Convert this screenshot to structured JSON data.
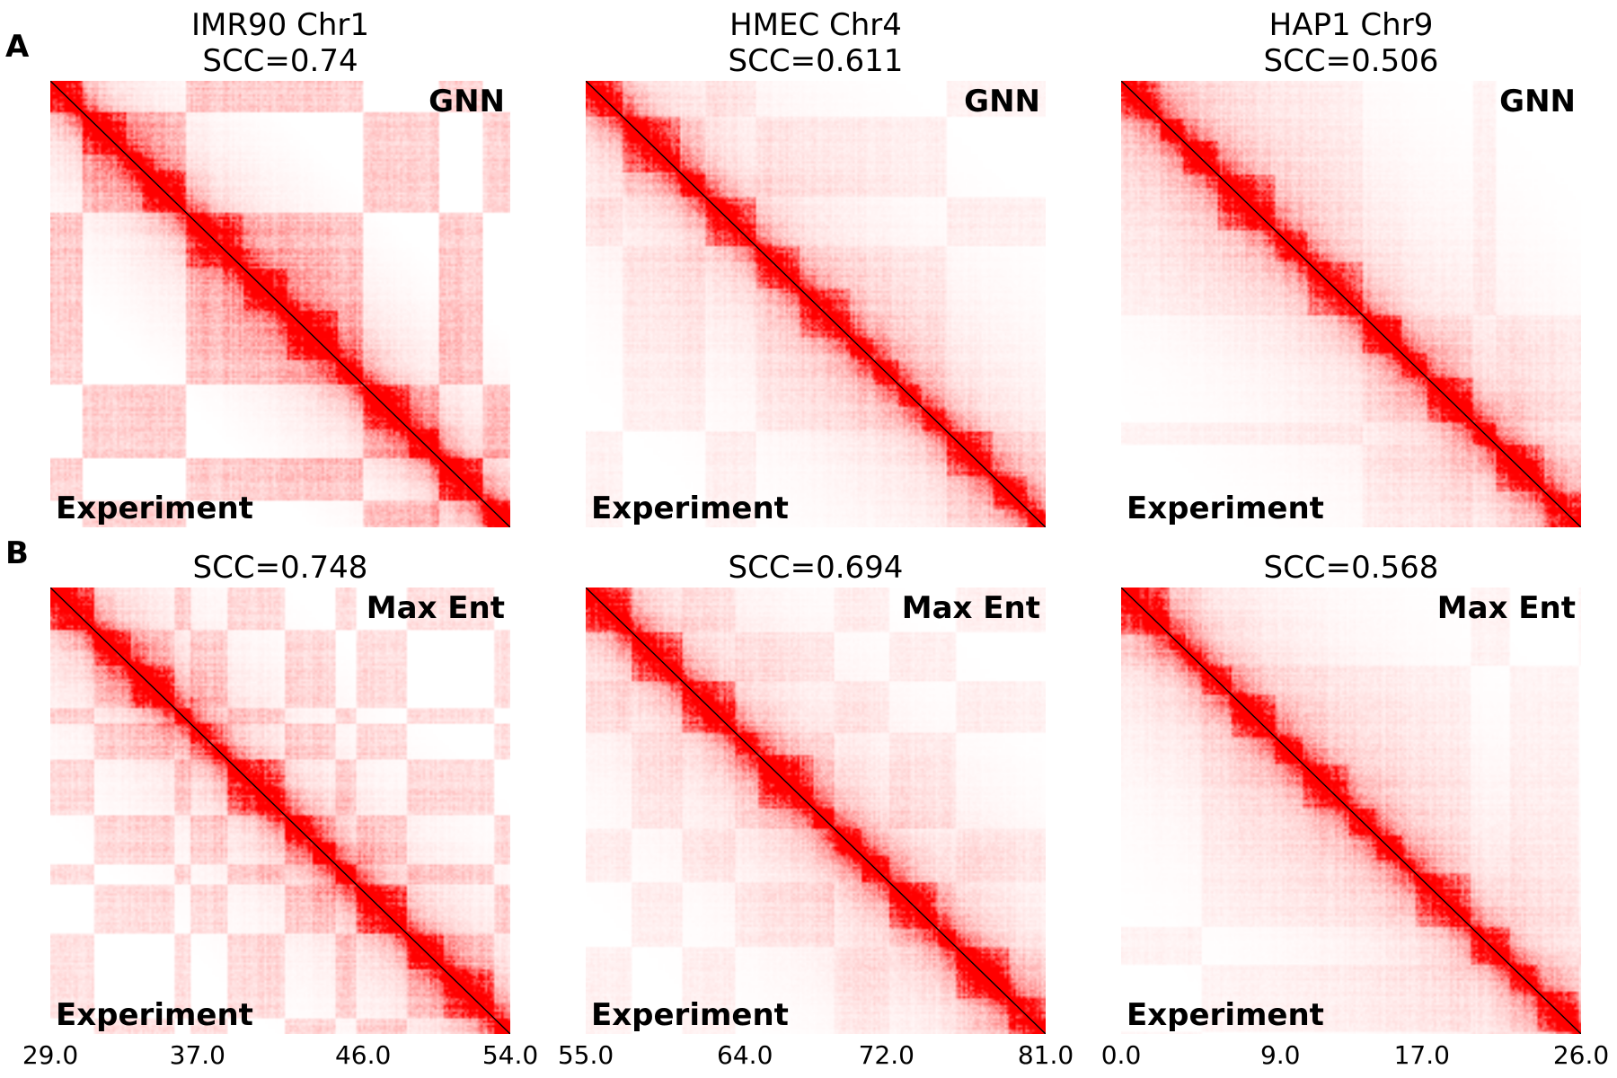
{
  "panel_labels": [
    "A",
    "B"
  ],
  "chart_data": [
    {
      "type": "heatmap",
      "row": "A",
      "title_line1": "IMR90 Chr1",
      "title_line2": "SCC=0.74",
      "upper_label": "GNN",
      "lower_label": "Experiment",
      "scc": 0.74,
      "xticks": [
        "29.0",
        "37.0",
        "46.0",
        "54.0"
      ],
      "xlim": [
        29,
        54
      ]
    },
    {
      "type": "heatmap",
      "row": "A",
      "title_line1": "HMEC Chr4",
      "title_line2": "SCC=0.611",
      "upper_label": "GNN",
      "lower_label": "Experiment",
      "scc": 0.611,
      "xticks": [
        "55.0",
        "64.0",
        "72.0",
        "81.0"
      ],
      "xlim": [
        55,
        81
      ]
    },
    {
      "type": "heatmap",
      "row": "A",
      "title_line1": "HAP1 Chr9",
      "title_line2": "SCC=0.506",
      "upper_label": "GNN",
      "lower_label": "Experiment",
      "scc": 0.506,
      "xticks": [
        "0.0",
        "9.0",
        "17.0",
        "26.0"
      ],
      "xlim": [
        0,
        26
      ]
    },
    {
      "type": "heatmap",
      "row": "B",
      "title_line1": "",
      "title_line2": "SCC=0.748",
      "upper_label": "Max Ent",
      "lower_label": "Experiment",
      "scc": 0.748,
      "xticks": [
        "29.0",
        "37.0",
        "46.0",
        "54.0"
      ],
      "xlim": [
        29,
        54
      ]
    },
    {
      "type": "heatmap",
      "row": "B",
      "title_line1": "",
      "title_line2": "SCC=0.694",
      "upper_label": "Max Ent",
      "lower_label": "Experiment",
      "scc": 0.694,
      "xticks": [
        "55.0",
        "64.0",
        "72.0",
        "81.0"
      ],
      "xlim": [
        55,
        81
      ]
    },
    {
      "type": "heatmap",
      "row": "B",
      "title_line1": "",
      "title_line2": "SCC=0.568",
      "upper_label": "Max Ent",
      "lower_label": "Experiment",
      "scc": 0.568,
      "xticks": [
        "0.0",
        "9.0",
        "17.0",
        "26.0"
      ],
      "xlim": [
        0,
        26
      ]
    }
  ],
  "colors": {
    "contact": "#ff0000",
    "background": "#ffffff",
    "diagonal": "#000000"
  }
}
